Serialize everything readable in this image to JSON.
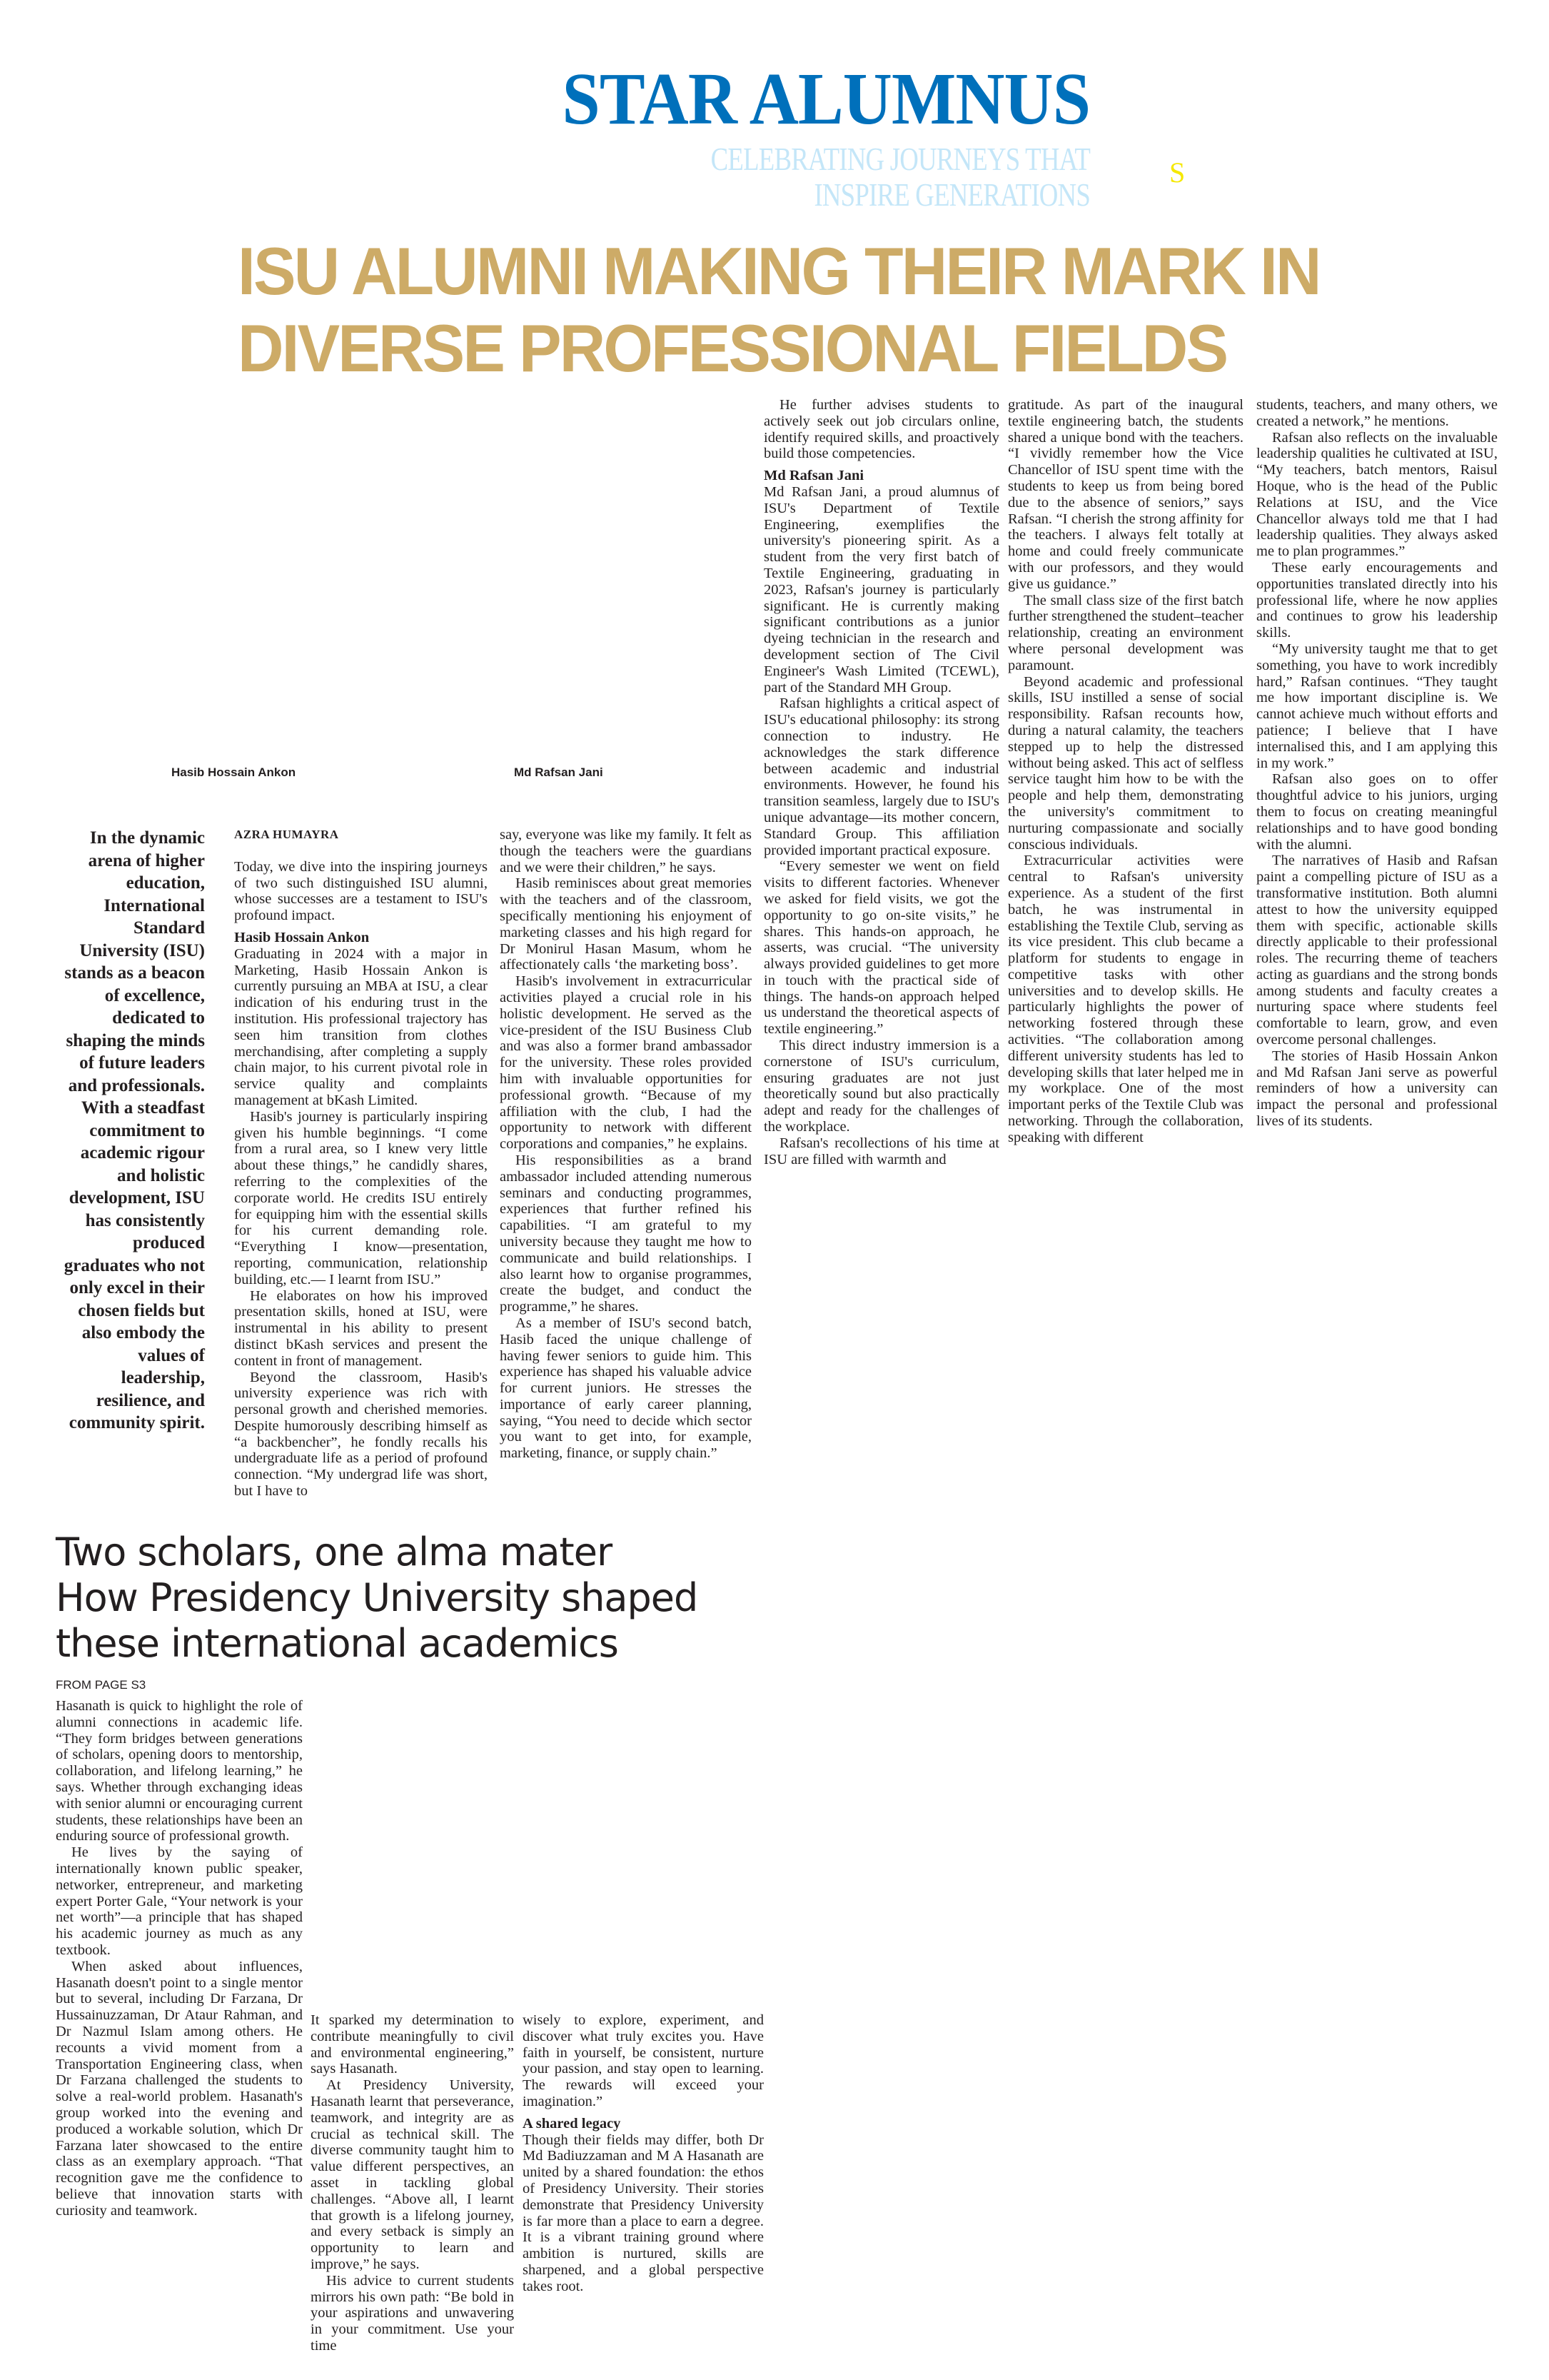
{
  "section": {
    "masthead": "STAR ALUMNUS",
    "tagline_1": "CELEBRATING JOURNEYS THAT",
    "tagline_2": "INSPIRE GENERATIONS",
    "mark": "S"
  },
  "colors": {
    "masthead": "#0070bb",
    "tagline": "#c4e6f8",
    "headline": "#cdab67",
    "mark": "#f5e800"
  },
  "article": {
    "headline_1": "ISU ALUMNI MAKING THEIR MARK IN",
    "headline_2": "DIVERSE PROFESSIONAL FIELDS",
    "photo_captions": [
      "Hasib Hossain Ankon",
      "Md Rafsan Jani"
    ],
    "pull_quote": "In the dynamic arena of higher education, International Standard University (ISU) stands as a beacon of excellence, dedicated to shaping the minds of future leaders and professionals. With a steadfast commitment to academic rigour and holistic development, ISU has consistently produced graduates who not only excel in their chosen fields but also embody the values of leadership, resilience, and community spirit.",
    "byline": "AZRA HUMAYRA",
    "columns": [
      [
        {
          "type": "intro",
          "text": "Today, we dive into the inspiring journeys of two such distinguished ISU alumni, whose successes are a testament to ISU's profound impact."
        },
        {
          "type": "sub",
          "text": "Hasib Hossain Ankon"
        },
        {
          "type": "cont",
          "text": "Graduating in 2024 with a major in Marketing, Hasib Hossain Ankon is currently pursuing an MBA at ISU, a clear indication of his enduring trust in the institution. His professional trajectory has seen him transition from clothes merchandising, after completing a supply chain major, to his current pivotal role in service quality and complaints management at bKash Limited."
        },
        {
          "type": "p",
          "text": "Hasib's journey is particularly inspiring given his humble beginnings. “I come from a rural area, so I knew very little about these things,” he candidly shares, referring to the complexities of the corporate world. He credits ISU entirely for equipping him with the essential skills for his current demanding role. “Everything I know—presentation, reporting, communication, relationship building, etc.— I learnt from ISU.”"
        },
        {
          "type": "p",
          "text": "He elaborates on how his improved presentation skills, honed at ISU, were instrumental in his ability to present distinct bKash services and present the content in front of management."
        },
        {
          "type": "p",
          "text": "Beyond the classroom, Hasib's university experience was rich with personal growth and cherished memories. Despite humorously describing himself as “a backbencher”, he fondly recalls his undergraduate life as a period of profound connection. “My undergrad life was short, but I have to"
        }
      ],
      [
        {
          "type": "cont",
          "text": "say, everyone was like my family. It felt as though the teachers were the guardians and we were their children,” he says."
        },
        {
          "type": "p",
          "text": "Hasib reminisces about great memories with the teachers and of the classroom, specifically mentioning his enjoyment of marketing classes and his high regard for Dr Monirul Hasan Masum, whom he affectionately calls ‘the marketing boss’."
        },
        {
          "type": "p",
          "text": "Hasib's involvement in extracurricular activities played a crucial role in his holistic development. He served as the vice-president of the ISU Business Club and was also a former brand ambassador for the university. These roles provided him with invaluable opportunities for professional growth. “Because of my affiliation with the club, I had the opportunity to network with different corporations and companies,” he explains."
        },
        {
          "type": "p",
          "text": "His responsibilities as a brand ambassador included attending numerous seminars and conducting programmes, experiences that further refined his capabilities. “I am grateful to my university because they taught me how to communicate and build relationships. I also learnt how to organise programmes, create the budget, and conduct the programme,” he shares."
        },
        {
          "type": "p",
          "text": "As a member of ISU's second batch, Hasib faced the unique challenge of having fewer seniors to guide him. This experience has shaped his valuable advice for current juniors. He stresses the importance of early career planning, saying, “You need to decide which sector you want to get into, for example, marketing, finance, or supply chain.”"
        }
      ],
      [
        {
          "type": "p",
          "text": "He further advises students to actively seek out job circulars online, identify required skills, and proactively build those competencies."
        },
        {
          "type": "sub",
          "text": "Md Rafsan Jani"
        },
        {
          "type": "cont",
          "text": "Md Rafsan Jani, a proud alumnus of ISU's Department of Textile Engineering, exemplifies the university's pioneering spirit. As a student from the very first batch of Textile Engineering, graduating in 2023, Rafsan's journey is particularly significant. He is currently making significant contributions as a junior dyeing technician in the research and development section of The Civil Engineer's Wash Limited (TCEWL), part of the Standard MH Group."
        },
        {
          "type": "p",
          "text": "Rafsan highlights a critical aspect of ISU's educational philosophy: its strong connection to industry. He acknowledges the stark difference between academic and industrial environments. However, he found his transition seamless, largely due to ISU's unique advantage—its mother concern, Standard Group. This affiliation provided important practical exposure."
        },
        {
          "type": "p",
          "text": "“Every semester we went on field visits to different factories. Whenever we asked for field visits, we got the opportunity to go on-site visits,” he shares. This hands-on approach, he asserts, was crucial. “The university always provided guidelines to get more in touch with the practical side of things. The hands-on approach helped us understand the theoretical aspects of textile engineering.”"
        },
        {
          "type": "p",
          "text": "This direct industry immersion is a cornerstone of ISU's curriculum, ensuring graduates are not just theoretically sound but also practically adept and ready for the challenges of the workplace."
        },
        {
          "type": "p",
          "text": "Rafsan's recollections of his time at ISU are filled with warmth and"
        }
      ],
      [
        {
          "type": "cont",
          "text": "gratitude. As part of the inaugural textile engineering batch, the students shared a unique bond with the teachers. “I vividly remember how the Vice Chancellor of ISU spent time with the students to keep us from being bored due to the absence of seniors,” says Rafsan. “I cherish the strong affinity for the teachers. I always felt totally at home and could freely communicate with our professors, and they would give us guidance.”"
        },
        {
          "type": "p",
          "text": "The small class size of the first batch further strengthened the student–teacher relationship, creating an environment where personal development was paramount."
        },
        {
          "type": "p",
          "text": "Beyond academic and professional skills, ISU instilled a sense of social responsibility. Rafsan recounts how, during a natural calamity, the teachers stepped up to help the distressed without being asked. This act of selfless service taught him how to be with the people and help them, demonstrating the university's commitment to nurturing compassionate and socially conscious individuals."
        },
        {
          "type": "p",
          "text": "Extracurricular activities were central to Rafsan's university experience. As a student of the first batch, he was instrumental in establishing the Textile Club, serving as its vice president. This club became a platform for students to engage in competitive tasks with other universities and to develop skills. He particularly highlights the power of networking fostered through these activities. “The collaboration among different university students has led to developing skills that later helped me in my workplace. One of the most important perks of the Textile Club was networking. Through the collaboration, speaking with different"
        }
      ],
      [
        {
          "type": "cont",
          "text": "students, teachers, and many others, we created a network,” he mentions."
        },
        {
          "type": "p",
          "text": "Rafsan also reflects on the invaluable leadership qualities he cultivated at ISU, “My teachers, batch mentors, Raisul Hoque, who is the head of the Public Relations at ISU, and the Vice Chancellor always told me that I had leadership qualities. They always asked me to plan programmes.”"
        },
        {
          "type": "p",
          "text": "These early encouragements and opportunities translated directly into his professional life, where he now applies and continues to grow his leadership skills."
        },
        {
          "type": "p",
          "text": "“My university taught me that to get something, you have to work incredibly hard,” Rafsan continues. “They taught me how important discipline is. We cannot achieve much without efforts and patience; I believe that I have internalised this, and I am applying this in my work.”"
        },
        {
          "type": "p",
          "text": "Rafsan also goes on to offer thoughtful advice to his juniors, urging them to focus on creating meaningful relationships and to have good bonding with the alumni."
        },
        {
          "type": "p",
          "text": "The narratives of Hasib and Rafsan paint a compelling picture of ISU as a transformative institution. Both alumni attest to how the university equipped them with specific, actionable skills directly applicable to their professional roles. The recurring theme of teachers acting as guardians and the strong bonds among students and faculty creates a nurturing space where students feel comfortable to learn, grow, and even overcome personal challenges."
        },
        {
          "type": "p",
          "text": "The stories of Hasib Hossain Ankon and Md Rafsan Jani serve as powerful reminders of how a university can impact the personal and professional lives of its students."
        }
      ]
    ]
  },
  "second_article": {
    "headline": [
      "Two scholars, one alma mater",
      "How Presidency University shaped",
      "these international academics"
    ],
    "jump_line": "FROM PAGE S3",
    "columns": [
      [
        {
          "type": "cont",
          "text": "Hasanath is quick to highlight the role of alumni connections in academic life. “They form bridges between generations of scholars, opening doors to mentorship, collaboration, and lifelong learning,” he says. Whether through exchanging ideas with senior alumni or encouraging current students, these relationships have been an enduring source of professional growth."
        },
        {
          "type": "p",
          "text": "He lives by the saying of internationally known public speaker, networker, entrepreneur, and marketing expert Porter Gale, “Your network is your net worth”—a principle that has shaped his academic journey as much as any textbook."
        },
        {
          "type": "p",
          "text": "When asked about influences, Hasanath doesn't point to a single mentor but to several, including Dr Farzana, Dr Hussainuzzaman, Dr Ataur Rahman, and Dr Nazmul Islam among others. He recounts a vivid moment from a Transportation Engineering class, when Dr Farzana challenged the students to solve a real-world problem. Hasanath's group worked into the evening and produced a workable solution, which Dr Farzana later showcased to the entire class as an exemplary approach. “That recognition gave me the confidence to believe that innovation starts with curiosity and teamwork."
        }
      ],
      [
        {
          "type": "cont",
          "text": "It sparked my determination to contribute meaningfully to civil and environmental engineering,” says Hasanath."
        },
        {
          "type": "p",
          "text": "At Presidency University, Hasanath learnt that perseverance, teamwork, and integrity are as crucial as technical skill. The diverse community taught him to value different perspectives, an asset in tackling global challenges. “Above all, I learnt that growth is a lifelong journey, and every setback is simply an opportunity to learn and improve,” he says."
        },
        {
          "type": "p",
          "text": "His advice to current students mirrors his own path: “Be bold in your aspirations and unwavering in your commitment. Use your time"
        }
      ],
      [
        {
          "type": "cont",
          "text": "wisely to explore, experiment, and discover what truly excites you. Have faith in yourself, be consistent, nurture your passion, and stay open to learning. The rewards will exceed your imagination.”"
        },
        {
          "type": "sub",
          "text": "A shared legacy"
        },
        {
          "type": "cont",
          "text": "Though their fields may differ, both Dr Md Badiuzzaman and M A Hasanath are united by a shared foundation: the ethos of Presidency University. Their stories demonstrate that Presidency University is far more than a place to earn a degree. It is a vibrant training ground where ambition is nurtured, skills are sharpened, and a global perspective takes root."
        }
      ]
    ]
  }
}
